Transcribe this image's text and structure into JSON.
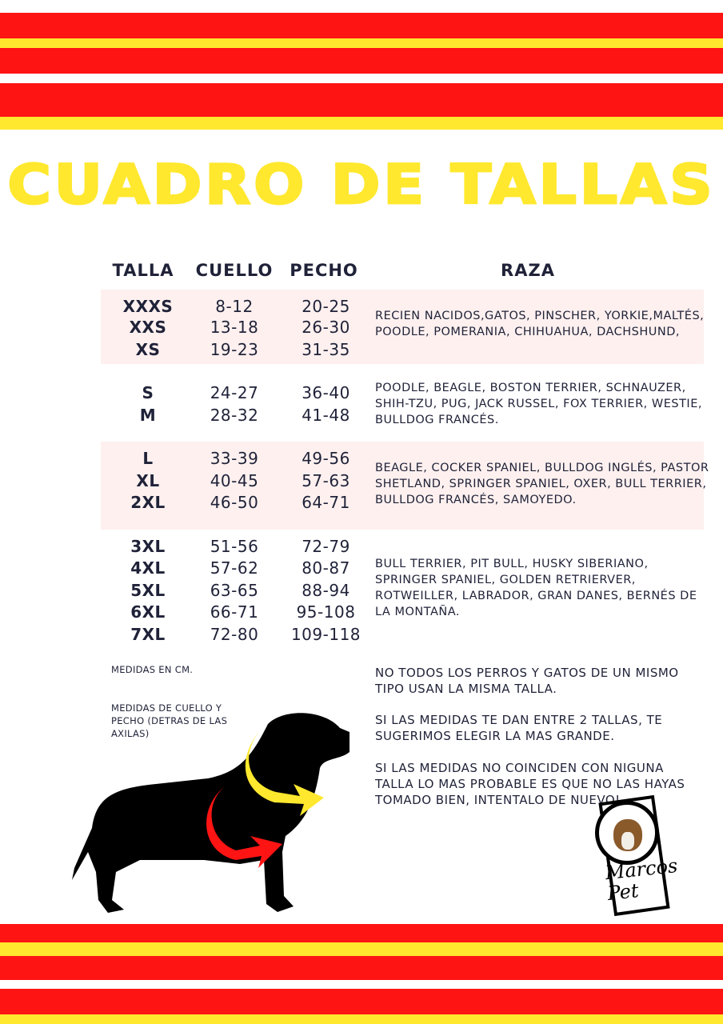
{
  "colors": {
    "red": "#ff1414",
    "yellow": "#ffe82e",
    "text": "#1f2238",
    "band": "#fdf0ef"
  },
  "title": "CUADRO DE TALLAS",
  "headers": {
    "size": "TALLA",
    "neck": "CUELLO",
    "chest": "PECHO",
    "breed": "RAZA"
  },
  "groups": [
    {
      "shaded": true,
      "rows": [
        [
          "XXXS",
          "8-12",
          "20-25"
        ],
        [
          "XXS",
          "13-18",
          "26-30"
        ],
        [
          "XS",
          "19-23",
          "31-35"
        ]
      ],
      "breeds": "RECIEN NACIDOS,GATOS, PINSCHER, YORKIE,MALTÉS, POODLE, POMERANIA, CHIHUAHUA, DACHSHUND,"
    },
    {
      "shaded": false,
      "rows": [
        [
          "S",
          "24-27",
          "36-40"
        ],
        [
          "M",
          "28-32",
          "41-48"
        ]
      ],
      "breeds": "POODLE, BEAGLE, BOSTON TERRIER, SCHNAUZER, SHIH-TZU, PUG, JACK RUSSEL, FOX TERRIER, WESTIE, BULLDOG FRANCÉS."
    },
    {
      "shaded": true,
      "rows": [
        [
          "L",
          "33-39",
          "49-56"
        ],
        [
          "XL",
          "40-45",
          "57-63"
        ],
        [
          "2XL",
          "46-50",
          "64-71"
        ]
      ],
      "breeds": "BEAGLE, COCKER SPANIEL, BULLDOG INGLÉS, PASTOR SHETLAND, SPRINGER SPANIEL, OXER, BULL TERRIER, BULLDOG FRANCÉS, SAMOYEDO."
    },
    {
      "shaded": false,
      "rows": [
        [
          "3XL",
          "51-56",
          "72-79"
        ],
        [
          "4XL",
          "57-62",
          "80-87"
        ],
        [
          "5XL",
          "63-65",
          "88-94"
        ],
        [
          "6XL",
          "66-71",
          "95-108"
        ],
        [
          "7XL",
          "72-80",
          "109-118"
        ]
      ],
      "breeds": "BULL TERRIER, PIT BULL, HUSKY SIBERIANO, SPRINGER SPANIEL, GOLDEN RETRIERVER, ROTWEILLER, LABRADOR, GRAN DANES, BERNÉS DE LA MONTAÑA."
    }
  ],
  "notes_left": {
    "units": "MEDIDAS EN CM.",
    "measure": "MEDIDAS DE CUELLO Y PECHO (DETRAS DE LAS AXILAS)"
  },
  "notes_right": [
    "NO TODOS LOS PERROS Y GATOS DE UN MISMO TIPO USAN LA MISMA TALLA.",
    "SI LAS MEDIDAS TE DAN ENTRE 2 TALLAS, TE SUGERIMOS ELEGIR LA MAS GRANDE.",
    "SI LAS MEDIDAS NO COINCIDEN CON NIGUNA TALLA LO MAS PROBABLE ES QUE NO LAS HAYAS TOMADO BIEN, INTENTALO DE NUEVO!."
  ],
  "logo": {
    "text": "Marcos Pet"
  },
  "icons": {
    "dog": "dog-silhouette-icon",
    "logo": "marcos-pet-logo"
  }
}
